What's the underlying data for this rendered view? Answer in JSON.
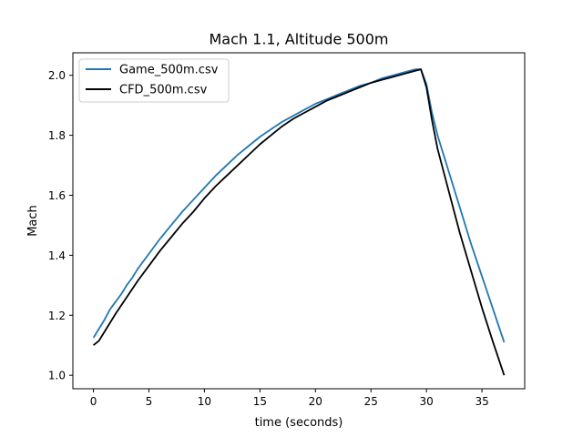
{
  "chart_data": {
    "type": "line",
    "title": "Mach 1.1, Altitude 500m",
    "xlabel": "time (seconds)",
    "ylabel": "Mach",
    "xlim": [
      -1.85,
      38.85
    ],
    "ylim": [
      0.955,
      2.075
    ],
    "xticks": [
      0,
      5,
      10,
      15,
      20,
      25,
      30,
      35
    ],
    "yticks": [
      1.0,
      1.2,
      1.4,
      1.6,
      1.8,
      2.0
    ],
    "xtick_labels": [
      "0",
      "5",
      "10",
      "15",
      "20",
      "25",
      "30",
      "35"
    ],
    "ytick_labels": [
      "1.0",
      "1.2",
      "1.4",
      "1.6",
      "1.8",
      "2.0"
    ],
    "grid": false,
    "legend_position": "top-left",
    "series": [
      {
        "name": "Game_500m.csv",
        "color": "#1f77b4",
        "x": [
          0,
          0.5,
          1,
          1.5,
          2,
          2.5,
          3,
          3.5,
          4,
          5,
          6,
          7,
          8,
          9,
          10,
          11,
          12,
          13,
          14,
          15,
          16,
          17,
          18,
          19,
          20,
          21,
          22,
          23,
          24,
          25,
          26,
          27,
          28,
          29,
          29.5,
          30,
          30.5,
          31,
          32,
          33,
          34,
          35,
          36,
          37
        ],
        "y": [
          1.125,
          1.155,
          1.185,
          1.22,
          1.245,
          1.27,
          1.3,
          1.325,
          1.355,
          1.405,
          1.455,
          1.5,
          1.545,
          1.585,
          1.625,
          1.665,
          1.7,
          1.735,
          1.765,
          1.795,
          1.82,
          1.845,
          1.865,
          1.885,
          1.905,
          1.92,
          1.935,
          1.95,
          1.965,
          1.975,
          1.99,
          2.0,
          2.01,
          2.02,
          2.02,
          1.97,
          1.875,
          1.8,
          1.68,
          1.56,
          1.44,
          1.33,
          1.22,
          1.11
        ]
      },
      {
        "name": "CFD_500m.csv",
        "color": "#000000",
        "x": [
          0,
          0.5,
          1,
          2,
          3,
          4,
          5,
          6,
          7,
          8,
          9,
          10,
          11,
          12,
          13,
          14,
          15,
          16,
          17,
          18,
          19,
          20,
          21,
          22,
          23,
          24,
          25,
          26,
          27,
          28,
          29,
          29.5,
          30,
          30.5,
          31,
          32,
          33,
          34,
          35,
          36,
          37
        ],
        "y": [
          1.1,
          1.115,
          1.145,
          1.205,
          1.26,
          1.315,
          1.365,
          1.415,
          1.46,
          1.505,
          1.545,
          1.59,
          1.63,
          1.665,
          1.7,
          1.735,
          1.77,
          1.8,
          1.83,
          1.855,
          1.875,
          1.895,
          1.915,
          1.93,
          1.945,
          1.96,
          1.975,
          1.985,
          1.995,
          2.005,
          2.015,
          2.02,
          1.96,
          1.85,
          1.755,
          1.615,
          1.475,
          1.35,
          1.225,
          1.11,
          1.0
        ]
      }
    ]
  }
}
